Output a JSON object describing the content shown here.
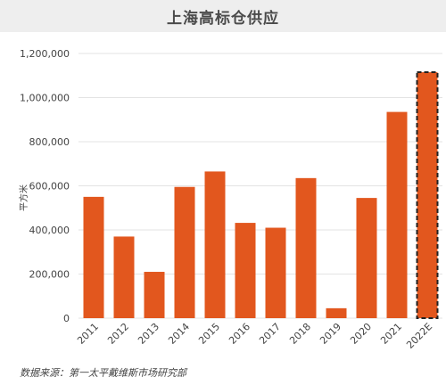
{
  "chart_data": {
    "type": "bar",
    "title": "上海高标仓供应",
    "ylabel": "平方米",
    "categories": [
      "2011",
      "2012",
      "2013",
      "2014",
      "2015",
      "2016",
      "2017",
      "2018",
      "2019",
      "2020",
      "2021",
      "2022E"
    ],
    "values": [
      550000,
      370000,
      210000,
      595000,
      665000,
      432000,
      410000,
      635000,
      45000,
      545000,
      935000,
      1115000
    ],
    "estimated": [
      false,
      false,
      false,
      false,
      false,
      false,
      false,
      false,
      false,
      false,
      false,
      true
    ],
    "ylim": [
      0,
      1200000
    ],
    "yticks": [
      0,
      200000,
      400000,
      600000,
      800000,
      1000000,
      1200000
    ],
    "ytick_labels": [
      "0",
      "200,000",
      "400,000",
      "600,000",
      "800,000",
      "1,000,000",
      "1,200,000"
    ],
    "grid": true,
    "colors": {
      "bar": "#e2571e",
      "estimate_border": "#222222",
      "grid": "#e3e3e3",
      "title_bg": "#eeeeee"
    }
  },
  "source_text": "数据来源：第一太平戴维斯市场研究部"
}
